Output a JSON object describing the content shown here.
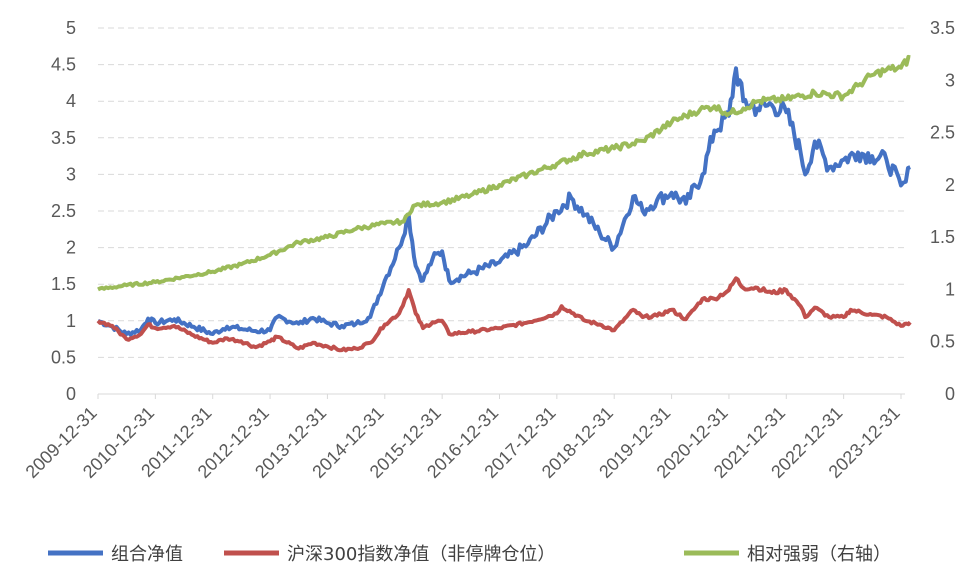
{
  "chart_data": {
    "type": "line",
    "left_axis": {
      "ylim": [
        0,
        5
      ],
      "ticks": [
        "0",
        "0.5",
        "1",
        "1.5",
        "2",
        "2.5",
        "3",
        "3.5",
        "4",
        "4.5",
        "5"
      ]
    },
    "right_axis": {
      "ylim": [
        0,
        3.5
      ],
      "ticks": [
        "0",
        "0.5",
        "1",
        "1.5",
        "2",
        "2.5",
        "3",
        "3.5"
      ]
    },
    "x_tick_labels": [
      "2009-12-31",
      "2010-12-31",
      "2011-12-31",
      "2012-12-31",
      "2013-12-31",
      "2014-12-31",
      "2015-12-31",
      "2016-12-31",
      "2017-12-31",
      "2018-12-31",
      "2019-12-31",
      "2020-12-31",
      "2021-12-31",
      "2022-12-31",
      "2023-12-31"
    ],
    "grid": "horizontal dashed",
    "legend_position": "bottom",
    "series": [
      {
        "name": "组合净值",
        "axis": "left",
        "color": "#4472C4",
        "points": [
          [
            "2009-12-31",
            1.0
          ],
          [
            "2010-03-31",
            0.92
          ],
          [
            "2010-06-30",
            0.82
          ],
          [
            "2010-09-30",
            0.88
          ],
          [
            "2010-11-15",
            1.03
          ],
          [
            "2010-12-31",
            0.97
          ],
          [
            "2011-04-30",
            1.02
          ],
          [
            "2011-08-31",
            0.92
          ],
          [
            "2011-12-31",
            0.82
          ],
          [
            "2012-03-31",
            0.92
          ],
          [
            "2012-06-30",
            0.89
          ],
          [
            "2012-09-30",
            0.86
          ],
          [
            "2012-12-31",
            0.87
          ],
          [
            "2013-02-15",
            1.05
          ],
          [
            "2013-06-30",
            0.96
          ],
          [
            "2013-09-30",
            1.04
          ],
          [
            "2013-12-31",
            0.97
          ],
          [
            "2014-03-31",
            0.93
          ],
          [
            "2014-06-30",
            0.96
          ],
          [
            "2014-09-30",
            1.05
          ],
          [
            "2014-12-31",
            1.55
          ],
          [
            "2015-03-31",
            2.0
          ],
          [
            "2015-05-31",
            2.45
          ],
          [
            "2015-07-15",
            1.75
          ],
          [
            "2015-08-31",
            1.55
          ],
          [
            "2015-10-31",
            1.85
          ],
          [
            "2015-12-31",
            1.95
          ],
          [
            "2016-02-15",
            1.55
          ],
          [
            "2016-06-30",
            1.65
          ],
          [
            "2016-12-31",
            1.8
          ],
          [
            "2017-06-30",
            2.05
          ],
          [
            "2017-12-31",
            2.5
          ],
          [
            "2018-03-31",
            2.68
          ],
          [
            "2018-06-30",
            2.45
          ],
          [
            "2018-09-30",
            2.2
          ],
          [
            "2018-12-31",
            2.0
          ],
          [
            "2019-04-30",
            2.7
          ],
          [
            "2019-06-30",
            2.5
          ],
          [
            "2019-09-30",
            2.65
          ],
          [
            "2019-12-31",
            2.75
          ],
          [
            "2020-03-31",
            2.6
          ],
          [
            "2020-07-15",
            3.0
          ],
          [
            "2020-09-30",
            3.6
          ],
          [
            "2020-12-31",
            3.8
          ],
          [
            "2021-02-15",
            4.45
          ],
          [
            "2021-03-31",
            4.0
          ],
          [
            "2021-06-30",
            3.9
          ],
          [
            "2021-09-30",
            3.95
          ],
          [
            "2021-12-31",
            3.85
          ],
          [
            "2022-03-31",
            3.3
          ],
          [
            "2022-04-30",
            3.0
          ],
          [
            "2022-06-30",
            3.45
          ],
          [
            "2022-09-30",
            3.1
          ],
          [
            "2022-12-31",
            3.2
          ],
          [
            "2023-03-31",
            3.3
          ],
          [
            "2023-06-30",
            3.25
          ],
          [
            "2023-09-30",
            3.2
          ],
          [
            "2023-12-31",
            2.85
          ],
          [
            "2024-01-31",
            2.9
          ],
          [
            "2024-02-29",
            3.1
          ]
        ]
      },
      {
        "name": "沪深300指数净值（非停牌仓位）",
        "axis": "left",
        "color": "#C0504D",
        "points": [
          [
            "2009-12-31",
            1.0
          ],
          [
            "2010-03-31",
            0.93
          ],
          [
            "2010-06-30",
            0.75
          ],
          [
            "2010-09-30",
            0.82
          ],
          [
            "2010-11-15",
            0.95
          ],
          [
            "2010-12-31",
            0.9
          ],
          [
            "2011-04-30",
            0.93
          ],
          [
            "2011-08-31",
            0.8
          ],
          [
            "2011-12-31",
            0.7
          ],
          [
            "2012-03-31",
            0.76
          ],
          [
            "2012-06-30",
            0.72
          ],
          [
            "2012-09-30",
            0.64
          ],
          [
            "2012-12-31",
            0.72
          ],
          [
            "2013-02-15",
            0.78
          ],
          [
            "2013-06-30",
            0.62
          ],
          [
            "2013-09-30",
            0.7
          ],
          [
            "2013-12-31",
            0.65
          ],
          [
            "2014-03-31",
            0.6
          ],
          [
            "2014-06-30",
            0.62
          ],
          [
            "2014-09-30",
            0.7
          ],
          [
            "2014-12-31",
            0.95
          ],
          [
            "2015-03-31",
            1.1
          ],
          [
            "2015-05-31",
            1.42
          ],
          [
            "2015-07-15",
            1.1
          ],
          [
            "2015-08-31",
            0.9
          ],
          [
            "2015-10-31",
            0.98
          ],
          [
            "2015-12-31",
            1.0
          ],
          [
            "2016-02-15",
            0.82
          ],
          [
            "2016-06-30",
            0.85
          ],
          [
            "2016-12-31",
            0.9
          ],
          [
            "2017-06-30",
            0.98
          ],
          [
            "2017-12-31",
            1.1
          ],
          [
            "2018-01-31",
            1.2
          ],
          [
            "2018-06-30",
            1.0
          ],
          [
            "2018-09-30",
            0.95
          ],
          [
            "2018-12-31",
            0.87
          ],
          [
            "2019-04-30",
            1.15
          ],
          [
            "2019-06-30",
            1.05
          ],
          [
            "2019-09-30",
            1.07
          ],
          [
            "2019-12-31",
            1.15
          ],
          [
            "2020-03-31",
            1.02
          ],
          [
            "2020-07-15",
            1.3
          ],
          [
            "2020-09-30",
            1.3
          ],
          [
            "2020-12-31",
            1.42
          ],
          [
            "2021-02-15",
            1.58
          ],
          [
            "2021-03-31",
            1.45
          ],
          [
            "2021-06-30",
            1.45
          ],
          [
            "2021-09-30",
            1.38
          ],
          [
            "2021-12-31",
            1.42
          ],
          [
            "2022-03-31",
            1.2
          ],
          [
            "2022-04-30",
            1.05
          ],
          [
            "2022-06-30",
            1.18
          ],
          [
            "2022-09-30",
            1.05
          ],
          [
            "2022-12-31",
            1.05
          ],
          [
            "2023-02-15",
            1.15
          ],
          [
            "2023-06-30",
            1.08
          ],
          [
            "2023-09-30",
            1.05
          ],
          [
            "2023-12-31",
            0.93
          ],
          [
            "2024-02-29",
            0.98
          ]
        ]
      },
      {
        "name": "相对强弱（右轴）",
        "axis": "right",
        "color": "#9BBB59",
        "points": [
          [
            "2009-12-31",
            1.0
          ],
          [
            "2010-06-30",
            1.04
          ],
          [
            "2010-12-31",
            1.07
          ],
          [
            "2011-06-30",
            1.12
          ],
          [
            "2011-12-31",
            1.17
          ],
          [
            "2012-06-30",
            1.24
          ],
          [
            "2012-12-31",
            1.33
          ],
          [
            "2013-06-30",
            1.45
          ],
          [
            "2013-12-31",
            1.5
          ],
          [
            "2014-06-30",
            1.58
          ],
          [
            "2014-12-31",
            1.63
          ],
          [
            "2015-04-30",
            1.65
          ],
          [
            "2015-06-30",
            1.8
          ],
          [
            "2015-12-31",
            1.83
          ],
          [
            "2016-06-30",
            1.9
          ],
          [
            "2016-12-31",
            2.0
          ],
          [
            "2017-06-30",
            2.1
          ],
          [
            "2017-12-31",
            2.2
          ],
          [
            "2018-06-30",
            2.3
          ],
          [
            "2018-12-31",
            2.35
          ],
          [
            "2019-06-30",
            2.42
          ],
          [
            "2019-12-31",
            2.6
          ],
          [
            "2020-06-30",
            2.72
          ],
          [
            "2020-09-30",
            2.75
          ],
          [
            "2020-12-31",
            2.68
          ],
          [
            "2021-03-31",
            2.73
          ],
          [
            "2021-06-30",
            2.8
          ],
          [
            "2021-12-31",
            2.82
          ],
          [
            "2022-06-30",
            2.88
          ],
          [
            "2022-12-31",
            2.85
          ],
          [
            "2023-03-31",
            2.95
          ],
          [
            "2023-06-30",
            3.05
          ],
          [
            "2023-09-30",
            3.1
          ],
          [
            "2023-12-31",
            3.12
          ],
          [
            "2024-02-29",
            3.22
          ]
        ]
      }
    ]
  },
  "legend": [
    {
      "label": "组合净值",
      "color": "#4472C4"
    },
    {
      "label": "沪深300指数净值（非停牌仓位）",
      "color": "#C0504D"
    },
    {
      "label": "相对强弱（右轴）",
      "color": "#9BBB59"
    }
  ]
}
